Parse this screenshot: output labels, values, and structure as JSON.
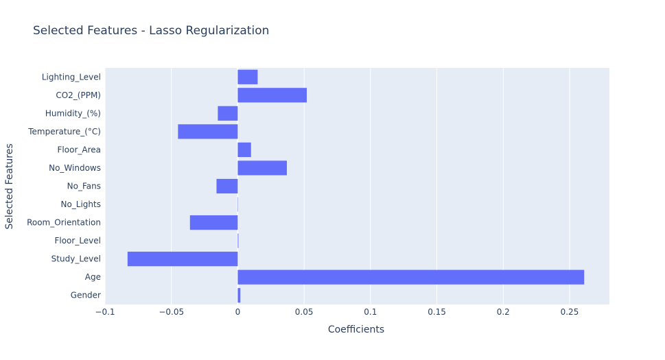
{
  "chart_data": {
    "type": "bar",
    "orientation": "horizontal",
    "title": "Selected Features - Lasso Regularization",
    "xlabel": "Coefficients",
    "ylabel": "Selected Features",
    "xlim": [
      -0.1,
      0.28
    ],
    "x_ticks": [
      -0.1,
      -0.05,
      0,
      0.05,
      0.1,
      0.15,
      0.2,
      0.25
    ],
    "x_tick_labels": [
      "−0.1",
      "−0.05",
      "0",
      "0.05",
      "0.1",
      "0.15",
      "0.2",
      "0.25"
    ],
    "grid": true,
    "bar_color": "#636efa",
    "plot_bg": "#e5ecf6",
    "categories": [
      "Gender",
      "Age",
      "Study_Level",
      "Floor_Level",
      "Room_Orientation",
      "No_Lights",
      "No_Fans",
      "No_Windows",
      "Floor_Area",
      "Temperature_(°C)",
      "Humidity_(%)",
      "CO2_(PPM)",
      "Lighting_Level"
    ],
    "values": [
      0.002,
      0.261,
      -0.083,
      0.0005,
      -0.036,
      0.0,
      -0.016,
      0.037,
      0.01,
      -0.045,
      -0.015,
      0.052,
      0.015
    ]
  }
}
